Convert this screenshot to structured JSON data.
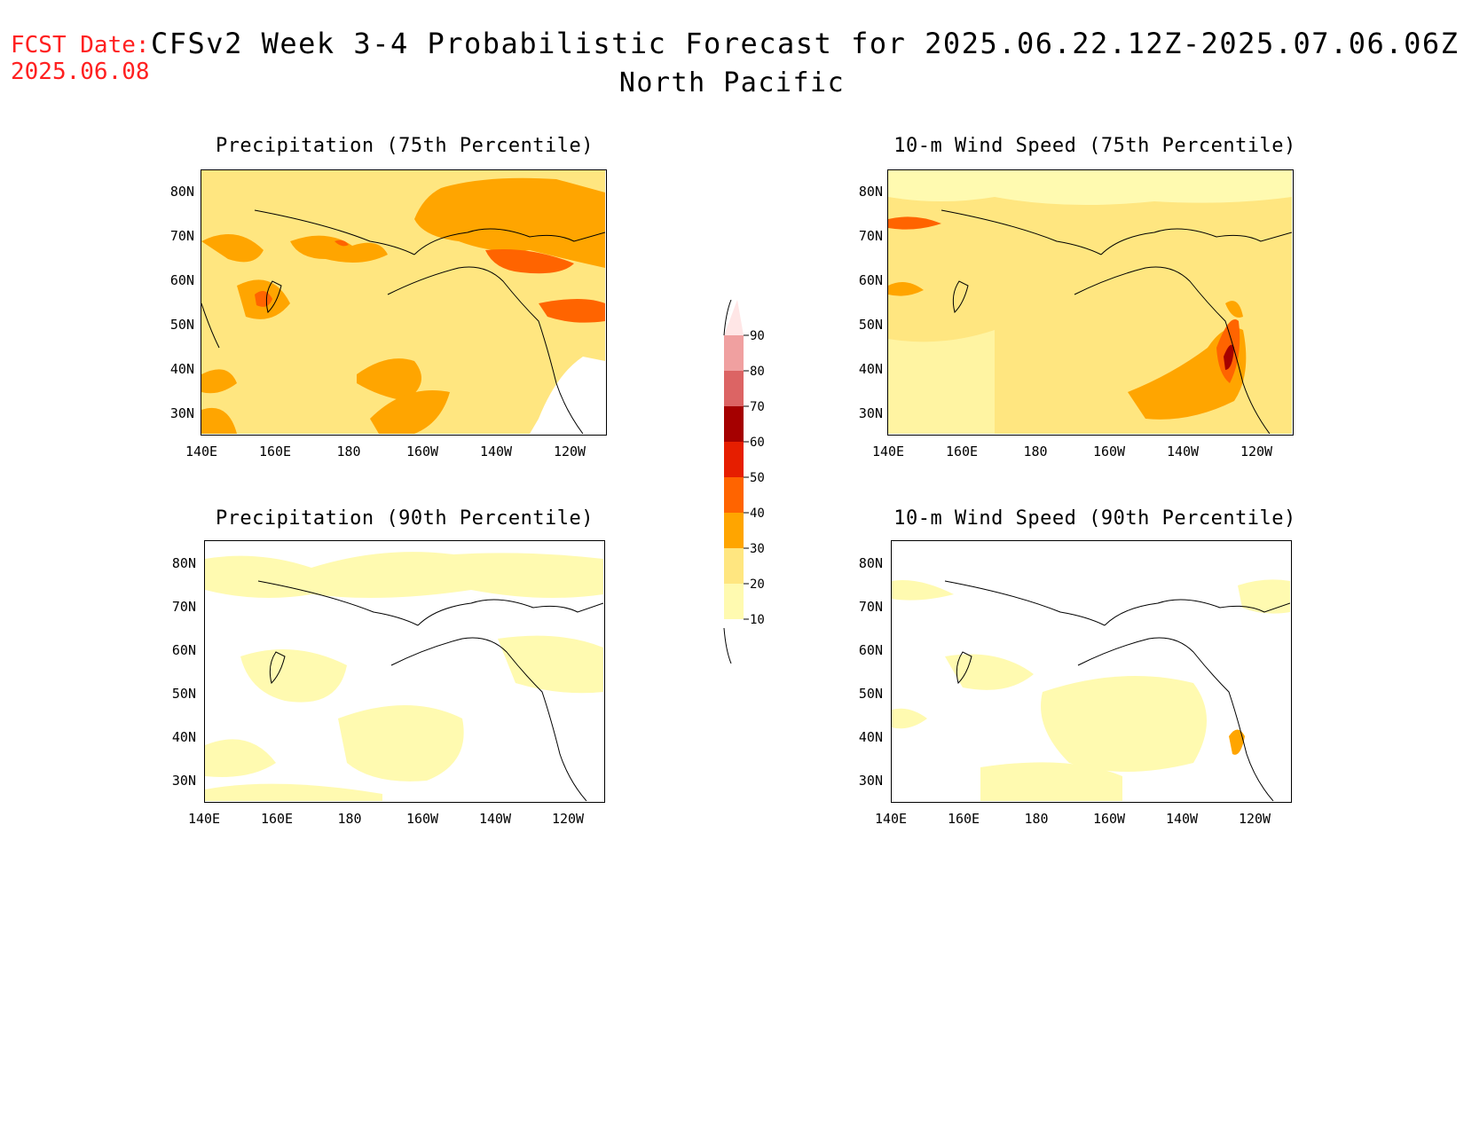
{
  "header": {
    "fcst_label": "FCST Date:",
    "fcst_date": "2025.06.08",
    "title": "CFSv2 Week 3-4 Probabilistic Forecast for 2025.06.22.12Z-2025.07.06.06Z",
    "subtitle": "North Pacific"
  },
  "panels": [
    {
      "id": "p75",
      "title": "Precipitation (75th Percentile)"
    },
    {
      "id": "w75",
      "title": "10-m Wind Speed (75th Percentile)"
    },
    {
      "id": "p90",
      "title": "Precipitation (90th Percentile)"
    },
    {
      "id": "w90",
      "title": "10-m Wind Speed (90th Percentile)"
    }
  ],
  "axes": {
    "lat_labels": [
      "80N",
      "70N",
      "60N",
      "50N",
      "40N",
      "30N"
    ],
    "lon_labels": [
      "140E",
      "160E",
      "180",
      "160W",
      "140W",
      "120W"
    ]
  },
  "colorbar": {
    "levels": [
      "10",
      "20",
      "30",
      "40",
      "50",
      "60",
      "70",
      "80",
      "90"
    ],
    "colors": [
      "#fffab0",
      "#ffe680",
      "#ffa500",
      "#ff6400",
      "#e61e00",
      "#a50000",
      "#dc6464",
      "#f0a0a0",
      "#ffe6e6"
    ]
  }
}
